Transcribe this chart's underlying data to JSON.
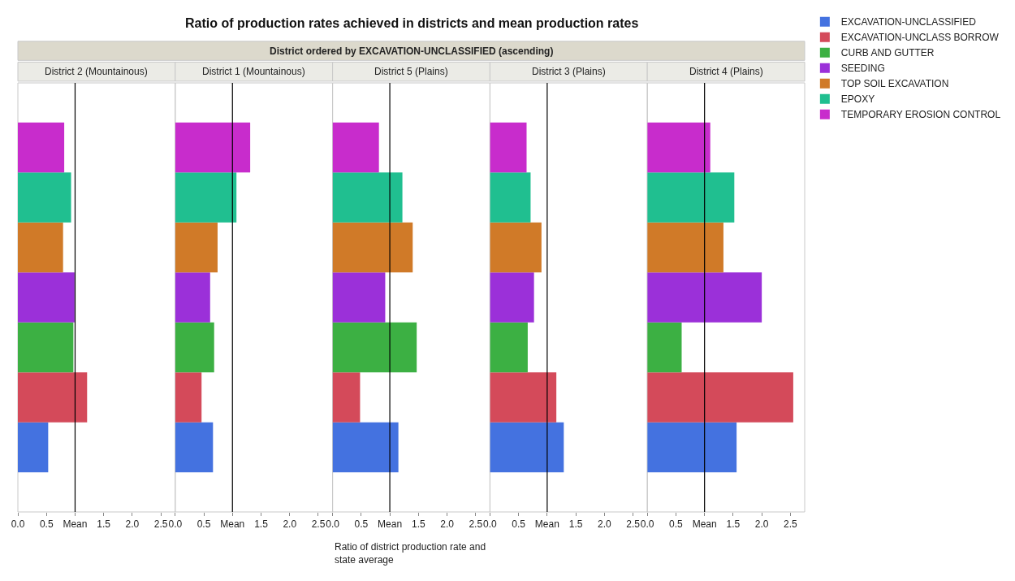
{
  "chart_data": [
    {
      "type": "bar",
      "orientation": "horizontal",
      "subtitle": "District 2 (Mountainous)",
      "categories": [
        null
      ],
      "xlim": [
        0,
        2.75
      ],
      "xticks": [
        {
          "value": 0,
          "label": "0.0"
        },
        0.5,
        {
          "value": 1,
          "label": "Mean"
        },
        1.5,
        {
          "value": 2,
          "label": "2.0"
        },
        2.5
      ],
      "ref_lines": [
        {
          "axis": "x",
          "value": 1,
          "color": "#000000"
        }
      ],
      "grid": false,
      "legend": "right",
      "series": [
        {
          "name": "EXCAVATION-UNCLASSIFIED",
          "color": "#4472e0",
          "values": [
            0.53
          ]
        },
        {
          "name": "EXCAVATION-UNCLASS BORROW",
          "color": "#d44a5a",
          "values": [
            1.21
          ]
        },
        {
          "name": "CURB AND GUTTER",
          "color": "#3cb043",
          "values": [
            0.97
          ]
        },
        {
          "name": "SEEDING",
          "color": "#9b30d9",
          "values": [
            0.99
          ]
        },
        {
          "name": "TOP SOIL EXCAVATION",
          "color": "#d07a28",
          "values": [
            0.79
          ]
        },
        {
          "name": "EPOXY",
          "color": "#20bf90",
          "values": [
            0.93
          ]
        },
        {
          "name": "TEMPORARY EROSION CONTROL",
          "color": "#c82ccc",
          "values": [
            0.81
          ]
        }
      ]
    },
    {
      "type": "bar",
      "orientation": "horizontal",
      "subtitle": "District 1 (Mountainous)",
      "categories": [
        null
      ],
      "xlim": [
        0,
        2.75
      ],
      "xticks": [
        {
          "value": 0,
          "label": "0.0"
        },
        0.5,
        {
          "value": 1,
          "label": "Mean"
        },
        1.5,
        {
          "value": 2,
          "label": "2.0"
        },
        2.5
      ],
      "ref_lines": [
        {
          "axis": "x",
          "value": 1,
          "color": "#000000"
        }
      ],
      "grid": false,
      "legend": "right",
      "series": [
        {
          "name": "EXCAVATION-UNCLASSIFIED",
          "color": "#4472e0",
          "values": [
            0.66
          ]
        },
        {
          "name": "EXCAVATION-UNCLASS BORROW",
          "color": "#d44a5a",
          "values": [
            0.46
          ]
        },
        {
          "name": "CURB AND GUTTER",
          "color": "#3cb043",
          "values": [
            0.68
          ]
        },
        {
          "name": "SEEDING",
          "color": "#9b30d9",
          "values": [
            0.61
          ]
        },
        {
          "name": "TOP SOIL EXCAVATION",
          "color": "#d07a28",
          "values": [
            0.74
          ]
        },
        {
          "name": "EPOXY",
          "color": "#20bf90",
          "values": [
            1.07
          ]
        },
        {
          "name": "TEMPORARY EROSION CONTROL",
          "color": "#c82ccc",
          "values": [
            1.31
          ]
        }
      ]
    },
    {
      "type": "bar",
      "orientation": "horizontal",
      "title": "Ratio of production rates achieved in districts and mean production rates",
      "annotations": [
        "District ordered by EXCAVATION-UNCLASSIFIED (ascending)"
      ],
      "subtitle": "District 5 (Plains)",
      "xlabel": "Ratio of district production rate and state average",
      "categories": [
        null
      ],
      "xlim": [
        0,
        2.75
      ],
      "xticks": [
        {
          "value": 0,
          "label": "0.0"
        },
        0.5,
        {
          "value": 1,
          "label": "Mean"
        },
        1.5,
        {
          "value": 2,
          "label": "2.0"
        },
        2.5
      ],
      "ref_lines": [
        {
          "axis": "x",
          "value": 1,
          "color": "#000000"
        }
      ],
      "grid": false,
      "legend": "right",
      "series": [
        {
          "name": "EXCAVATION-UNCLASSIFIED",
          "color": "#4472e0",
          "values": [
            1.15
          ]
        },
        {
          "name": "EXCAVATION-UNCLASS BORROW",
          "color": "#d44a5a",
          "values": [
            0.48
          ]
        },
        {
          "name": "CURB AND GUTTER",
          "color": "#3cb043",
          "values": [
            1.47
          ]
        },
        {
          "name": "SEEDING",
          "color": "#9b30d9",
          "values": [
            0.92
          ]
        },
        {
          "name": "TOP SOIL EXCAVATION",
          "color": "#d07a28",
          "values": [
            1.4
          ]
        },
        {
          "name": "EPOXY",
          "color": "#20bf90",
          "values": [
            1.22
          ]
        },
        {
          "name": "TEMPORARY EROSION CONTROL",
          "color": "#c82ccc",
          "values": [
            0.81
          ]
        }
      ]
    },
    {
      "type": "bar",
      "orientation": "horizontal",
      "subtitle": "District 3 (Plains)",
      "categories": [
        null
      ],
      "xlim": [
        0,
        2.75
      ],
      "xticks": [
        {
          "value": 0,
          "label": "0.0"
        },
        0.5,
        {
          "value": 1,
          "label": "Mean"
        },
        1.5,
        {
          "value": 2,
          "label": "2.0"
        },
        2.5
      ],
      "ref_lines": [
        {
          "axis": "x",
          "value": 1,
          "color": "#000000"
        }
      ],
      "grid": false,
      "legend": "right",
      "series": [
        {
          "name": "EXCAVATION-UNCLASSIFIED",
          "color": "#4472e0",
          "values": [
            1.29
          ]
        },
        {
          "name": "EXCAVATION-UNCLASS BORROW",
          "color": "#d44a5a",
          "values": [
            1.16
          ]
        },
        {
          "name": "CURB AND GUTTER",
          "color": "#3cb043",
          "values": [
            0.66
          ]
        },
        {
          "name": "SEEDING",
          "color": "#9b30d9",
          "values": [
            0.77
          ]
        },
        {
          "name": "TOP SOIL EXCAVATION",
          "color": "#d07a28",
          "values": [
            0.9
          ]
        },
        {
          "name": "EPOXY",
          "color": "#20bf90",
          "values": [
            0.71
          ]
        },
        {
          "name": "TEMPORARY EROSION CONTROL",
          "color": "#c82ccc",
          "values": [
            0.64
          ]
        }
      ]
    },
    {
      "type": "bar",
      "orientation": "horizontal",
      "subtitle": "District 4 (Plains)",
      "categories": [
        null
      ],
      "xlim": [
        0,
        2.75
      ],
      "xticks": [
        {
          "value": 0,
          "label": "0.0"
        },
        0.5,
        {
          "value": 1,
          "label": "Mean"
        },
        1.5,
        {
          "value": 2,
          "label": "2.0"
        },
        2.5
      ],
      "ref_lines": [
        {
          "axis": "x",
          "value": 1,
          "color": "#000000"
        }
      ],
      "grid": false,
      "legend": "right",
      "series": [
        {
          "name": "EXCAVATION-UNCLASSIFIED",
          "color": "#4472e0",
          "values": [
            1.56
          ]
        },
        {
          "name": "EXCAVATION-UNCLASS BORROW",
          "color": "#d44a5a",
          "values": [
            2.55
          ]
        },
        {
          "name": "CURB AND GUTTER",
          "color": "#3cb043",
          "values": [
            0.6
          ]
        },
        {
          "name": "SEEDING",
          "color": "#9b30d9",
          "values": [
            2.0
          ]
        },
        {
          "name": "TOP SOIL EXCAVATION",
          "color": "#d07a28",
          "values": [
            1.33
          ]
        },
        {
          "name": "EPOXY",
          "color": "#20bf90",
          "values": [
            1.52
          ]
        },
        {
          "name": "TEMPORARY EROSION CONTROL",
          "color": "#c82ccc",
          "values": [
            1.1
          ]
        }
      ]
    }
  ]
}
